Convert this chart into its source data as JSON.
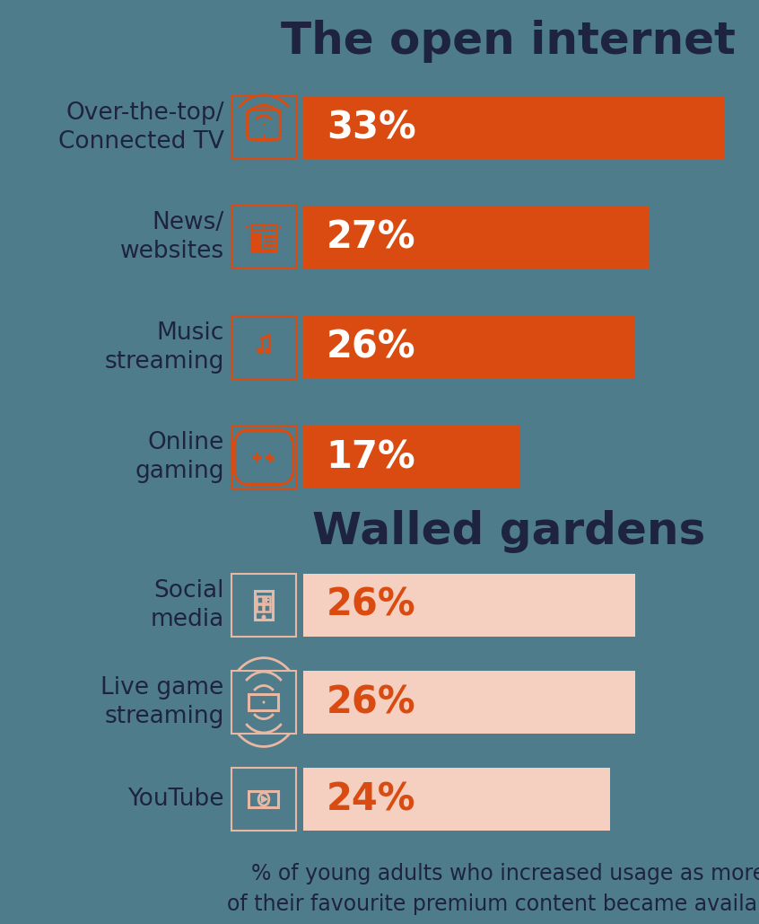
{
  "background_color": "#4f7c8a",
  "title1": "The open internet",
  "title2": "Walled gardens",
  "title_color": "#1e2340",
  "title_fontsize": 36,
  "label_color": "#1e2340",
  "label_fontsize": 19,
  "open_internet": {
    "categories": [
      "Over-the-top/\nConnected TV",
      "News/\nwebsites",
      "Music\nstreaming",
      "Online\ngaming"
    ],
    "values": [
      33,
      27,
      26,
      17
    ],
    "bar_color": "#d94b10",
    "text_color": "#ffffff",
    "max_value": 33
  },
  "walled_gardens": {
    "categories": [
      "Social\nmedia",
      "Live game\nstreaming",
      "YouTube"
    ],
    "values": [
      26,
      26,
      24
    ],
    "bar_color": "#f5cfc0",
    "text_color": "#d94b10",
    "max_value": 33
  },
  "footnote": "% of young adults who increased usage as more\nof their favourite premium content became available",
  "footnote_color": "#1e2340",
  "footnote_fontsize": 17,
  "icon_color_open": "#d94b10",
  "icon_color_walled": "#e8b8a5"
}
